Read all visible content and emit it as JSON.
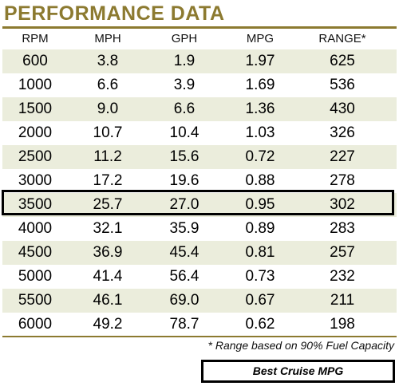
{
  "title": "PERFORMANCE DATA",
  "colors": {
    "accent": "#8c7a30",
    "shaded_row": "#ebeddc",
    "highlight_border": "#000000"
  },
  "table": {
    "headers": [
      "RPM",
      "MPH",
      "GPH",
      "MPG",
      "RANGE*"
    ],
    "rows": [
      [
        "600",
        "3.8",
        "1.9",
        "1.97",
        "625"
      ],
      [
        "1000",
        "6.6",
        "3.9",
        "1.69",
        "536"
      ],
      [
        "1500",
        "9.0",
        "6.6",
        "1.36",
        "430"
      ],
      [
        "2000",
        "10.7",
        "10.4",
        "1.03",
        "326"
      ],
      [
        "2500",
        "11.2",
        "15.6",
        "0.72",
        "227"
      ],
      [
        "3000",
        "17.2",
        "19.6",
        "0.88",
        "278"
      ],
      [
        "3500",
        "25.7",
        "27.0",
        "0.95",
        "302"
      ],
      [
        "4000",
        "32.1",
        "35.9",
        "0.89",
        "283"
      ],
      [
        "4500",
        "36.9",
        "45.4",
        "0.81",
        "257"
      ],
      [
        "5000",
        "41.4",
        "56.4",
        "0.73",
        "232"
      ],
      [
        "5500",
        "46.1",
        "69.0",
        "0.67",
        "211"
      ],
      [
        "6000",
        "49.2",
        "78.7",
        "0.62",
        "198"
      ]
    ],
    "highlighted_row_rpm": "3500"
  },
  "footnote": "* Range based on 90% Fuel Capacity",
  "legend": {
    "label": "Best Cruise MPG"
  }
}
